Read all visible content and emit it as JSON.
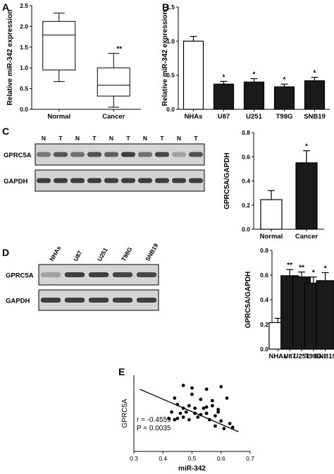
{
  "colors": {
    "ink": "#000000",
    "bar_dark": "#1a1a1a",
    "bar_light": "#ffffff",
    "blot_bg": "#d4d4d4",
    "band": "#2e2e2e"
  },
  "chart_data": [
    {
      "panel": "A",
      "type": "box",
      "ylabel": "Relative miR-342 expression",
      "ylim": [
        0,
        2.5
      ],
      "yticks": [
        "0.0",
        "0.5",
        "1.0",
        "1.5",
        "2.0",
        "2.5"
      ],
      "categories": [
        "Normal",
        "Cancer"
      ],
      "boxes": [
        {
          "min": 0.67,
          "q1": 0.95,
          "median": 1.79,
          "q3": 2.12,
          "max": 2.32,
          "annotation": ""
        },
        {
          "min": 0.05,
          "q1": 0.32,
          "median": 0.58,
          "q3": 1.0,
          "max": 1.35,
          "annotation": "**"
        }
      ]
    },
    {
      "panel": "B",
      "type": "bar",
      "ylabel": "Relative miR-342 expression",
      "ylim": [
        0,
        1.5
      ],
      "yticks": [
        "0.0",
        "0.5",
        "1.0",
        "1.5"
      ],
      "categories": [
        "NHAs",
        "U87",
        "U251",
        "T98G",
        "SNB19"
      ],
      "values": [
        1.0,
        0.37,
        0.4,
        0.33,
        0.42
      ],
      "errors": [
        0.07,
        0.04,
        0.05,
        0.04,
        0.05
      ],
      "annotations": [
        "",
        "*",
        "*",
        "*",
        "*"
      ]
    },
    {
      "panel": "C",
      "type": "bar",
      "ylabel": "GPRC5A/GAPDH",
      "ylim": [
        0,
        0.8
      ],
      "yticks": [
        "0.0",
        "0.2",
        "0.4",
        "0.6",
        "0.8"
      ],
      "categories": [
        "Normal",
        "Cancer"
      ],
      "values": [
        0.245,
        0.55
      ],
      "errors": [
        0.075,
        0.1
      ],
      "annotations": [
        "",
        "*"
      ]
    },
    {
      "panel": "D",
      "type": "bar",
      "ylabel": "GPRC5A/GAPDH",
      "ylim": [
        0,
        0.8
      ],
      "yticks": [
        "0.0",
        "0.2",
        "0.4",
        "0.6",
        "0.8"
      ],
      "categories": [
        "NHAs",
        "U87",
        "U251",
        "T98G",
        "SNB19"
      ],
      "values": [
        0.215,
        0.595,
        0.585,
        0.535,
        0.555
      ],
      "errors": [
        0.035,
        0.05,
        0.04,
        0.05,
        0.065
      ],
      "annotations": [
        "",
        "**",
        "**",
        "*",
        "*"
      ]
    },
    {
      "panel": "E",
      "type": "scatter",
      "xlabel": "miR-342",
      "ylabel": "GPRC5A",
      "xlim": [
        0.3,
        0.7
      ],
      "xticks": [
        "0.3",
        "0.4",
        "0.5",
        "0.6",
        "0.7"
      ],
      "stats": [
        "r = -0.4559",
        "P = 0.0035"
      ],
      "fit": {
        "x1": 0.32,
        "y1": 0.79,
        "x2": 0.66,
        "y2": 0.455
      },
      "points": [
        [
          0.47,
          0.82
        ],
        [
          0.5,
          0.8
        ],
        [
          0.55,
          0.79
        ],
        [
          0.6,
          0.81
        ],
        [
          0.44,
          0.72
        ],
        [
          0.5,
          0.75
        ],
        [
          0.53,
          0.71
        ],
        [
          0.57,
          0.7
        ],
        [
          0.62,
          0.72
        ],
        [
          0.45,
          0.67
        ],
        [
          0.47,
          0.64
        ],
        [
          0.49,
          0.66
        ],
        [
          0.51,
          0.64
        ],
        [
          0.54,
          0.64
        ],
        [
          0.57,
          0.66
        ],
        [
          0.59,
          0.63
        ],
        [
          0.43,
          0.61
        ],
        [
          0.46,
          0.6
        ],
        [
          0.48,
          0.61
        ],
        [
          0.51,
          0.6
        ],
        [
          0.53,
          0.59
        ],
        [
          0.55,
          0.6
        ],
        [
          0.58,
          0.58
        ],
        [
          0.42,
          0.56
        ],
        [
          0.44,
          0.55
        ],
        [
          0.45,
          0.56
        ],
        [
          0.47,
          0.57
        ],
        [
          0.49,
          0.55
        ],
        [
          0.52,
          0.57
        ],
        [
          0.56,
          0.55
        ],
        [
          0.6,
          0.54
        ],
        [
          0.63,
          0.52
        ],
        [
          0.58,
          0.5
        ],
        [
          0.61,
          0.48
        ],
        [
          0.64,
          0.49
        ],
        [
          0.59,
          0.61
        ],
        [
          0.55,
          0.65
        ]
      ]
    }
  ],
  "panel_labels": [
    "A",
    "B",
    "C",
    "D",
    "E"
  ],
  "blot_c": {
    "lanes": [
      "N",
      "T",
      "N",
      "T",
      "N",
      "T",
      "N",
      "T",
      "N",
      "T"
    ],
    "rows": [
      {
        "label": "GPRC5A",
        "intensities": [
          0.55,
          0.75,
          0.6,
          0.8,
          0.7,
          0.9,
          0.6,
          0.85,
          0.3,
          0.8
        ]
      },
      {
        "label": "GAPDH",
        "intensities": [
          0.9,
          0.9,
          0.9,
          0.9,
          0.9,
          0.9,
          0.9,
          0.9,
          0.9,
          0.9
        ]
      }
    ]
  },
  "blot_d": {
    "lanes": [
      "NHAs",
      "U87",
      "U251",
      "T98G",
      "SNB19"
    ],
    "rows": [
      {
        "label": "GPRC5A",
        "intensities": [
          0.3,
          0.9,
          0.9,
          0.85,
          0.85
        ]
      },
      {
        "label": "GAPDH",
        "intensities": [
          0.9,
          0.9,
          0.9,
          0.9,
          0.9
        ]
      }
    ]
  }
}
